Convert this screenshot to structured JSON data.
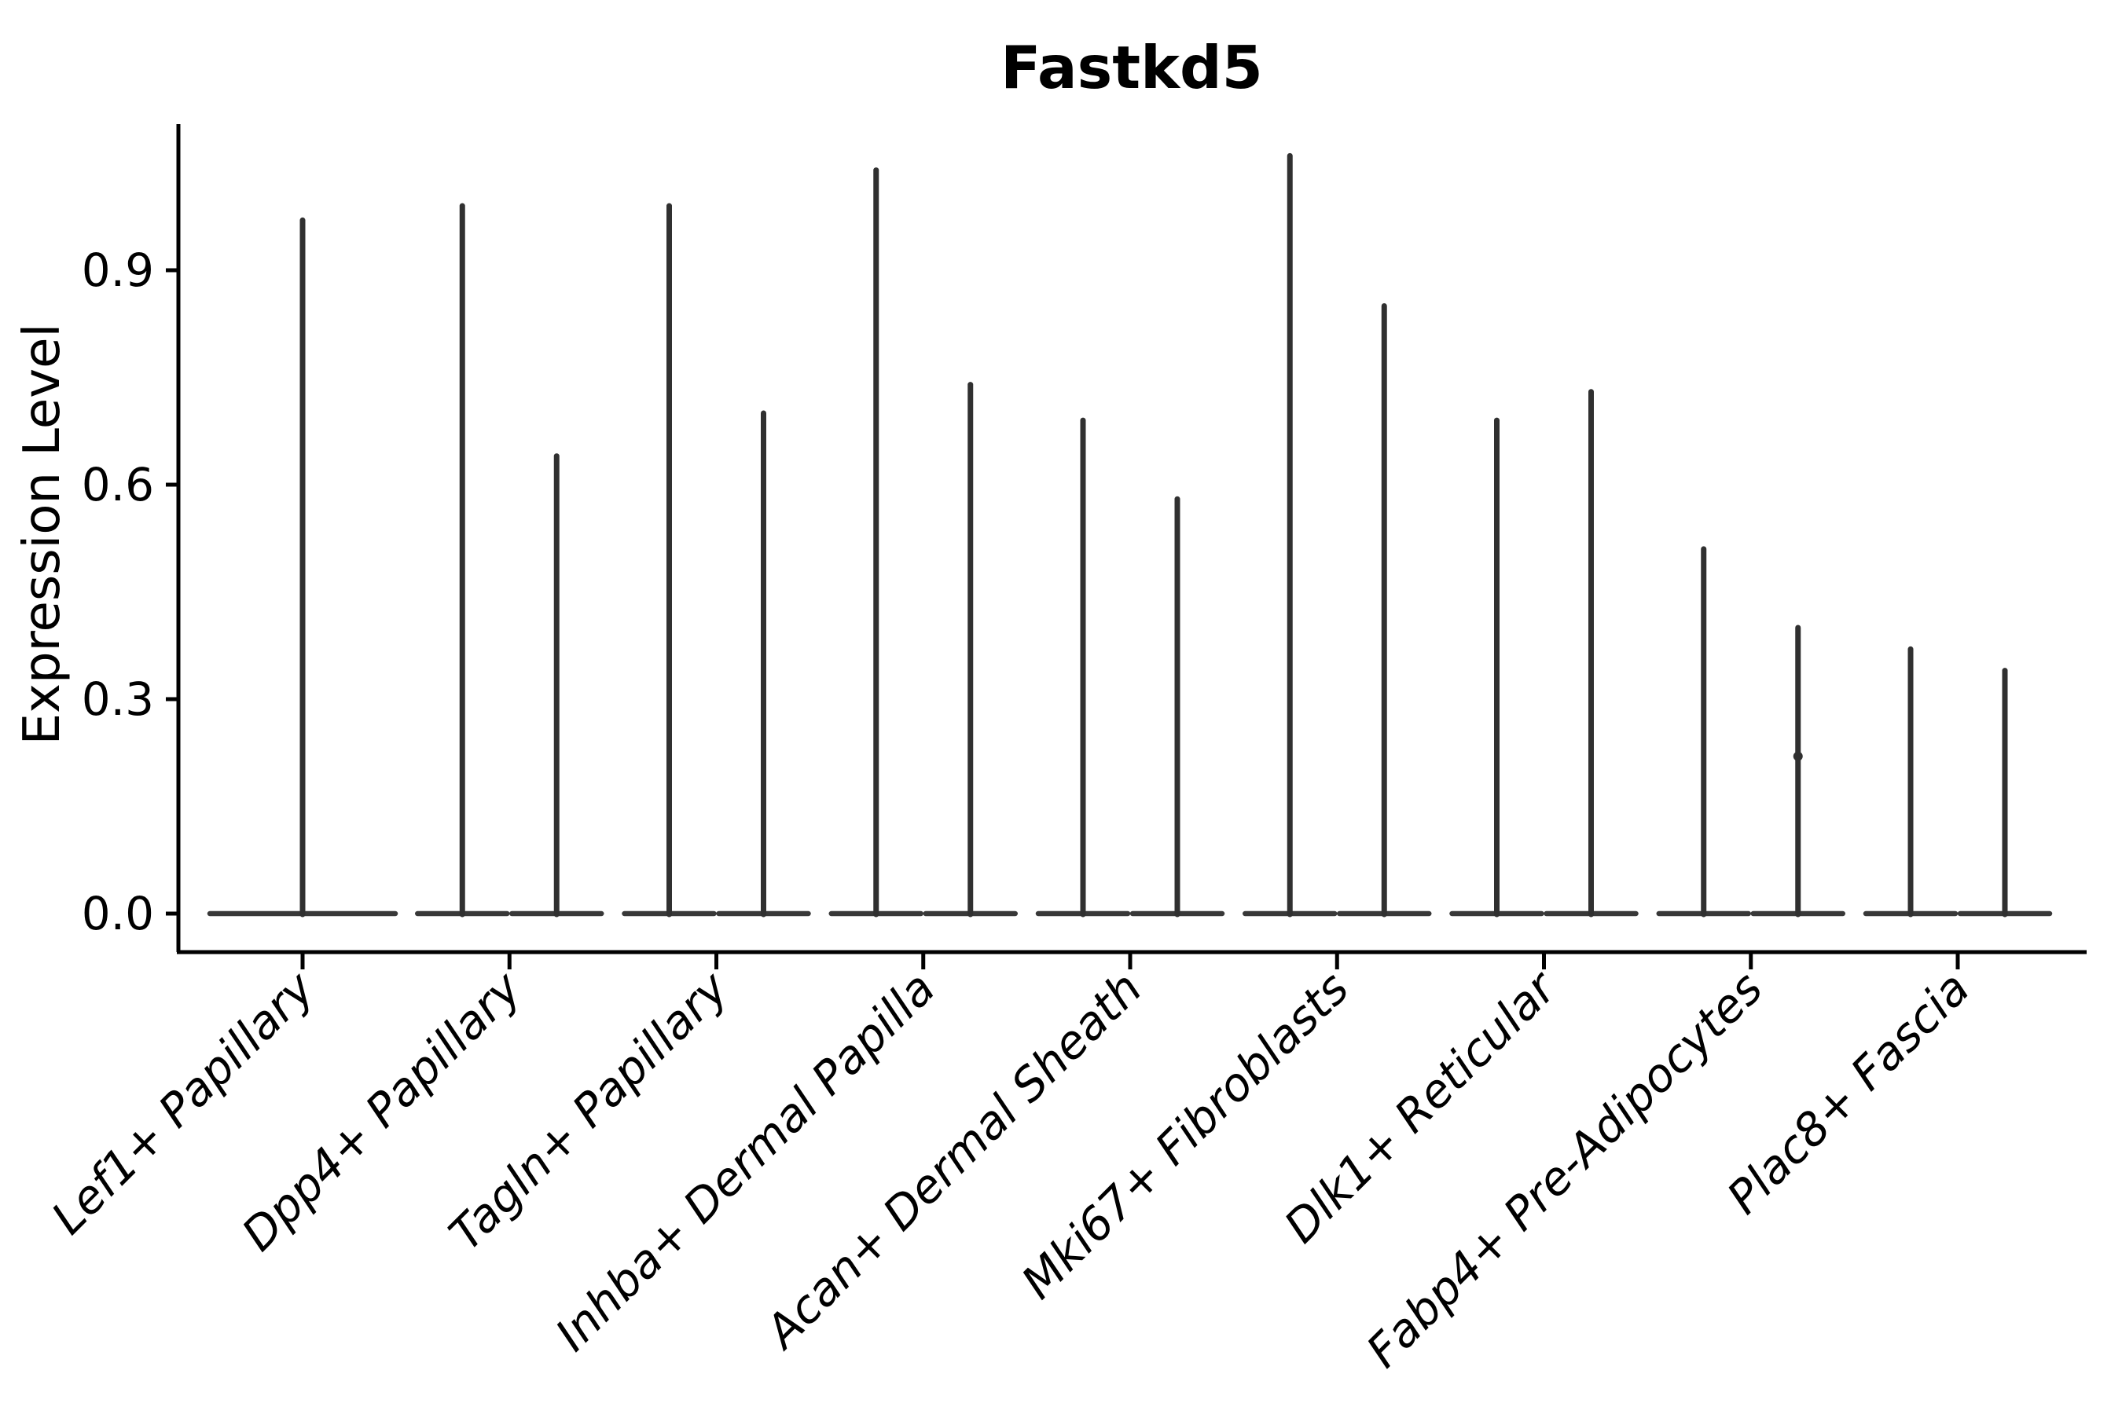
{
  "title": "Fastkd5",
  "y_axis": {
    "label": "Expression Level",
    "tick_labels": [
      "0.0",
      "0.3",
      "0.6",
      "0.9"
    ],
    "tick_values": [
      0.0,
      0.3,
      0.6,
      0.9
    ]
  },
  "x_axis": {
    "categories": [
      "Lef1+ Papillary",
      "Dpp4+ Papillary",
      "Tagln+ Papillary",
      "Inhba+ Dermal Papilla",
      "Acan+ Dermal Sheath",
      "Mki67+ Fibroblasts",
      "Dlk1+ Reticular",
      "Fabp4+ Pre-Adipocytes",
      "Plac8+ Fascia"
    ]
  },
  "chart_data": {
    "type": "violin",
    "title": "Fastkd5",
    "xlabel": "",
    "ylabel": "Expression Level",
    "yticks": [
      0.0,
      0.3,
      0.6,
      0.9
    ],
    "ytick_labels": [
      "0.0",
      "0.3",
      "0.6",
      "0.9"
    ],
    "ylim": [
      -0.05,
      1.1
    ],
    "grid": false,
    "legend": "none",
    "style": "needle-thin violins with flat base at 0, black axes, no top/right spines",
    "categories": [
      "Lef1+ Papillary",
      "Dpp4+ Papillary",
      "Tagln+ Papillary",
      "Inhba+ Dermal Papilla",
      "Acan+ Dermal Sheath",
      "Mki67+ Fibroblasts",
      "Dlk1+ Reticular",
      "Fabp4+ Pre-Adipocytes",
      "Plac8+ Fascia"
    ],
    "series": [
      {
        "category": "Lef1+ Papillary",
        "violins": [
          {
            "position": "center",
            "max": 0.97
          }
        ]
      },
      {
        "category": "Dpp4+ Papillary",
        "violins": [
          {
            "position": "left",
            "max": 0.99
          },
          {
            "position": "right",
            "max": 0.64
          }
        ]
      },
      {
        "category": "Tagln+ Papillary",
        "violins": [
          {
            "position": "left",
            "max": 0.99
          },
          {
            "position": "right",
            "max": 0.7
          }
        ]
      },
      {
        "category": "Inhba+ Dermal Papilla",
        "violins": [
          {
            "position": "left",
            "max": 1.04
          },
          {
            "position": "right",
            "max": 0.74
          }
        ]
      },
      {
        "category": "Acan+ Dermal Sheath",
        "violins": [
          {
            "position": "left",
            "max": 0.69
          },
          {
            "position": "right",
            "max": 0.58
          }
        ]
      },
      {
        "category": "Mki67+ Fibroblasts",
        "violins": [
          {
            "position": "left",
            "max": 1.06
          },
          {
            "position": "right",
            "max": 0.85
          }
        ]
      },
      {
        "category": "Dlk1+ Reticular",
        "violins": [
          {
            "position": "left",
            "max": 0.69
          },
          {
            "position": "right",
            "max": 0.73
          }
        ]
      },
      {
        "category": "Fabp4+ Pre-Adipocytes",
        "violins": [
          {
            "position": "left",
            "max": 0.51
          },
          {
            "position": "right",
            "max": 0.4,
            "knot": 0.22
          }
        ]
      },
      {
        "category": "Plac8+ Fascia",
        "violins": [
          {
            "position": "left",
            "max": 0.37
          },
          {
            "position": "right",
            "max": 0.34
          }
        ]
      }
    ],
    "baseline_value": 0.0
  },
  "colors": {
    "background": "#ffffff",
    "axis": "#000000",
    "text": "#000000",
    "violin": "#303030",
    "violin_base": "#383838"
  }
}
